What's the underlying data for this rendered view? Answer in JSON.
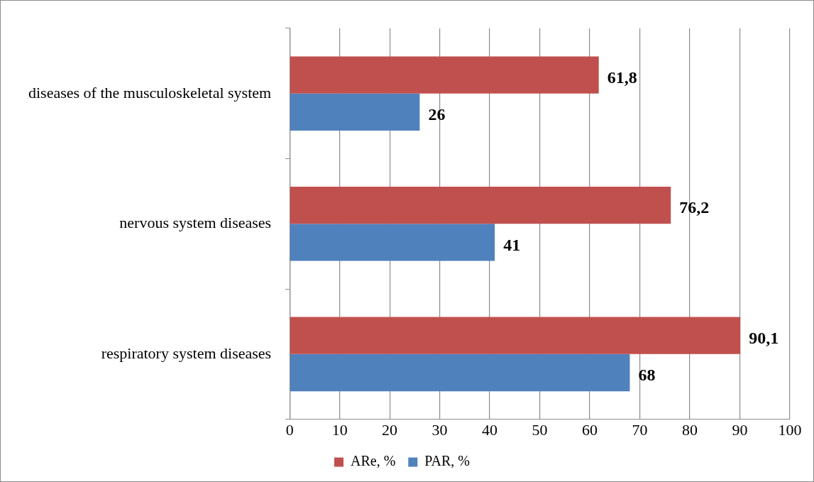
{
  "chart_data": {
    "type": "bar",
    "orientation": "horizontal",
    "categories": [
      "diseases of the musculoskeletal system",
      "nervous system diseases",
      "respiratory system diseases"
    ],
    "series": [
      {
        "name": "ARe, %",
        "color": "#c0504d",
        "values": [
          61.8,
          76.2,
          90.1
        ],
        "value_labels": [
          "61,8",
          "76,2",
          "90,1"
        ]
      },
      {
        "name": "PAR, %",
        "color": "#4f81bd",
        "values": [
          26,
          41,
          68
        ],
        "value_labels": [
          "26",
          "41",
          "68"
        ]
      }
    ],
    "xlim": [
      0,
      100
    ],
    "xticks": [
      0,
      10,
      20,
      30,
      40,
      50,
      60,
      70,
      80,
      90,
      100
    ],
    "grid": "x",
    "legend": "bottom"
  }
}
